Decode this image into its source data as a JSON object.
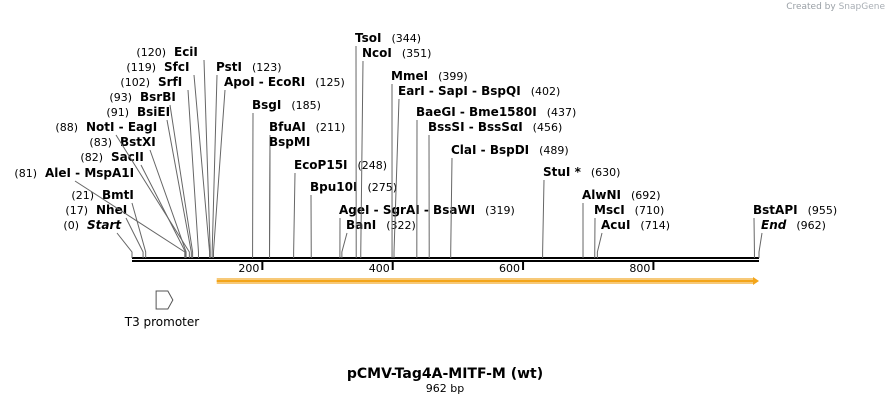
{
  "branding": {
    "prefix": "Created by",
    "name": "SnapGene"
  },
  "map": {
    "title": "pCMV-Tag4A-MITF-M (wt)",
    "length_label": "962 bp",
    "length_bp": 962,
    "scale_ticks": [
      200,
      400,
      600,
      800
    ]
  },
  "features": [
    {
      "label": "T3 promoter",
      "type": "promoter",
      "start": 37,
      "end": 55,
      "strand": "forward"
    },
    {
      "label": "",
      "type": "orf",
      "start": 130,
      "end": 962,
      "strand": "forward",
      "color": "#f3a51a"
    }
  ],
  "sites": [
    {
      "name": "Start",
      "pos": 0,
      "label": "(0)",
      "style": "italic"
    },
    {
      "name": "NheI",
      "pos": 17,
      "label": "(17)"
    },
    {
      "name": "BmtI",
      "pos": 21,
      "label": "(21)"
    },
    {
      "name": "AleI - MspA1I",
      "pos": 81,
      "label": "(81)"
    },
    {
      "name": "SacII",
      "pos": 82,
      "label": "(82)"
    },
    {
      "name": "BstXI",
      "pos": 83,
      "label": "(83)"
    },
    {
      "name": "NotI - EagI",
      "pos": 88,
      "label": "(88)"
    },
    {
      "name": "BsiEI",
      "pos": 91,
      "label": "(91)"
    },
    {
      "name": "BsrBI",
      "pos": 93,
      "label": "(93)"
    },
    {
      "name": "SrfI",
      "pos": 102,
      "label": "(102)"
    },
    {
      "name": "SfcI",
      "pos": 119,
      "label": "(119)"
    },
    {
      "name": "EciI",
      "pos": 120,
      "label": "(120)"
    },
    {
      "name": "PstI",
      "pos": 123,
      "label": "(123)"
    },
    {
      "name": "ApoI - EcoRI",
      "pos": 125,
      "label": "(125)"
    },
    {
      "name": "BsgI",
      "pos": 185,
      "label": "(185)"
    },
    {
      "name": "BfuAI",
      "pos": 211,
      "label": "(211)"
    },
    {
      "name": "BspMI",
      "pos": 211,
      "label": ""
    },
    {
      "name": "EcoP15I",
      "pos": 248,
      "label": "(248)"
    },
    {
      "name": "Bpu10I",
      "pos": 275,
      "label": "(275)"
    },
    {
      "name": "AgeI - SgrAI - BsaWI",
      "pos": 319,
      "label": "(319)"
    },
    {
      "name": "BanI",
      "pos": 322,
      "label": "(322)"
    },
    {
      "name": "TsoI",
      "pos": 344,
      "label": "(344)"
    },
    {
      "name": "NcoI",
      "pos": 351,
      "label": "(351)"
    },
    {
      "name": "MmeI",
      "pos": 399,
      "label": "(399)"
    },
    {
      "name": "EarI - SapI - BspQI",
      "pos": 402,
      "label": "(402)"
    },
    {
      "name": "BaeGI - Bme1580I",
      "pos": 437,
      "label": "(437)"
    },
    {
      "name": "BssSI - BssSαI",
      "pos": 456,
      "label": "(456)"
    },
    {
      "name": "ClaI - BspDI",
      "pos": 489,
      "label": "(489)"
    },
    {
      "name": "StuI *",
      "pos": 630,
      "label": "(630)"
    },
    {
      "name": "AlwNI",
      "pos": 692,
      "label": "(692)"
    },
    {
      "name": "MscI",
      "pos": 710,
      "label": "(710)"
    },
    {
      "name": "AcuI",
      "pos": 714,
      "label": "(714)"
    },
    {
      "name": "BstAPI",
      "pos": 955,
      "label": "(955)"
    },
    {
      "name": "End",
      "pos": 962,
      "label": "(962)",
      "style": "italic"
    }
  ]
}
